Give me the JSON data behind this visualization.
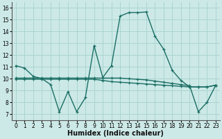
{
  "xlabel": "Humidex (Indice chaleur)",
  "ylabel": "",
  "bg_color": "#cce9e7",
  "grid_color": "#aad4d0",
  "line_color": "#1a6e64",
  "xlim": [
    -0.5,
    23.5
  ],
  "ylim": [
    6.5,
    16.5
  ],
  "xticks": [
    0,
    1,
    2,
    3,
    4,
    5,
    6,
    7,
    8,
    9,
    10,
    11,
    12,
    13,
    14,
    15,
    16,
    17,
    18,
    19,
    20,
    21,
    22,
    23
  ],
  "yticks": [
    7,
    8,
    9,
    10,
    11,
    12,
    13,
    14,
    15,
    16
  ],
  "curve1_x": [
    0,
    1,
    2,
    3,
    4,
    5,
    6,
    7,
    8,
    9,
    10,
    11,
    12,
    13,
    14,
    15,
    16,
    17,
    18,
    19,
    20,
    21,
    22,
    23
  ],
  "curve1_y": [
    11.1,
    10.9,
    10.2,
    10.0,
    9.5,
    7.2,
    8.9,
    7.2,
    8.4,
    12.8,
    10.1,
    11.1,
    15.3,
    15.6,
    15.6,
    15.65,
    13.6,
    12.5,
    10.7,
    9.85,
    9.3,
    9.3,
    9.3,
    9.45
  ],
  "curve2_x": [
    0,
    1,
    2,
    3,
    4,
    5,
    6,
    7,
    8,
    9,
    10,
    11,
    12,
    13,
    14,
    15,
    16,
    17,
    18,
    19,
    20,
    21,
    22,
    23
  ],
  "curve2_y": [
    10.05,
    10.05,
    10.05,
    10.05,
    10.05,
    10.05,
    10.05,
    10.05,
    10.05,
    10.05,
    10.05,
    10.05,
    10.05,
    10.0,
    9.95,
    9.9,
    9.8,
    9.7,
    9.6,
    9.5,
    9.4,
    7.2,
    8.0,
    9.45
  ],
  "curve3_x": [
    0,
    1,
    2,
    3,
    4,
    5,
    6,
    7,
    8,
    9,
    10,
    11,
    12,
    13,
    14,
    15,
    16,
    17,
    18,
    19,
    20,
    21,
    22,
    23
  ],
  "curve3_y": [
    9.95,
    9.95,
    9.95,
    9.95,
    9.95,
    9.95,
    9.95,
    9.95,
    9.95,
    9.95,
    9.85,
    9.75,
    9.7,
    9.65,
    9.6,
    9.55,
    9.5,
    9.45,
    9.4,
    9.35,
    9.3,
    9.3,
    9.3,
    9.45
  ],
  "tick_fontsize": 5.5,
  "label_fontsize": 7.0
}
